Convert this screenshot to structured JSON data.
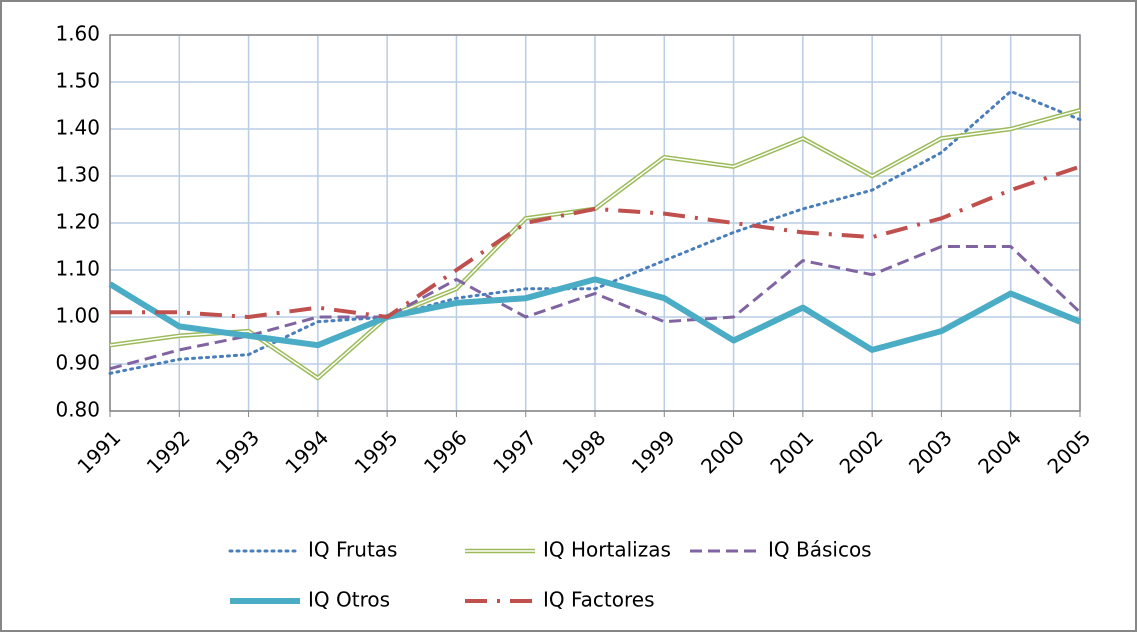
{
  "chart_data": {
    "type": "line",
    "categories": [
      "1991",
      "1992",
      "1993",
      "1994",
      "1995",
      "1996",
      "1997",
      "1998",
      "1999",
      "2000",
      "2001",
      "2002",
      "2003",
      "2004",
      "2005"
    ],
    "series": [
      {
        "name": "IQ Frutas",
        "color": "#4a7ebb",
        "style": "dotted",
        "values": [
          0.88,
          0.91,
          0.92,
          0.99,
          1.0,
          1.04,
          1.06,
          1.06,
          1.12,
          1.18,
          1.23,
          1.27,
          1.35,
          1.48,
          1.42
        ]
      },
      {
        "name": "IQ Hortalizas",
        "color": "#9bbb59",
        "style": "double",
        "values": [
          0.94,
          0.96,
          0.97,
          0.87,
          1.0,
          1.06,
          1.21,
          1.23,
          1.34,
          1.32,
          1.38,
          1.3,
          1.38,
          1.4,
          1.44
        ]
      },
      {
        "name": "IQ Básicos",
        "color": "#8064a2",
        "style": "dashed",
        "values": [
          0.89,
          0.93,
          0.96,
          1.0,
          1.0,
          1.08,
          1.0,
          1.05,
          0.99,
          1.0,
          1.12,
          1.09,
          1.15,
          1.15,
          1.01
        ]
      },
      {
        "name": "IQ Otros",
        "color": "#4bacc6",
        "style": "solid",
        "values": [
          1.07,
          0.98,
          0.96,
          0.94,
          1.0,
          1.03,
          1.04,
          1.08,
          1.04,
          0.95,
          1.02,
          0.93,
          0.97,
          1.05,
          0.99
        ]
      },
      {
        "name": "IQ Factores",
        "color": "#c0504d",
        "style": "dashdot",
        "values": [
          1.01,
          1.01,
          1.0,
          1.02,
          1.0,
          1.1,
          1.2,
          1.23,
          1.22,
          1.2,
          1.18,
          1.17,
          1.21,
          1.27,
          1.32
        ]
      }
    ],
    "ylim": [
      0.8,
      1.6
    ],
    "yticks": [
      {
        "value": 0.8,
        "label": "0.80"
      },
      {
        "value": 0.9,
        "label": "0.90"
      },
      {
        "value": 1.0,
        "label": "1.00"
      },
      {
        "value": 1.1,
        "label": "1.10"
      },
      {
        "value": 1.2,
        "label": "1.20"
      },
      {
        "value": 1.3,
        "label": "1.30"
      },
      {
        "value": 1.4,
        "label": "1.40"
      },
      {
        "value": 1.5,
        "label": "1.50"
      },
      {
        "value": 1.6,
        "label": "1.60"
      }
    ],
    "grid": true,
    "legend": "bottom"
  }
}
